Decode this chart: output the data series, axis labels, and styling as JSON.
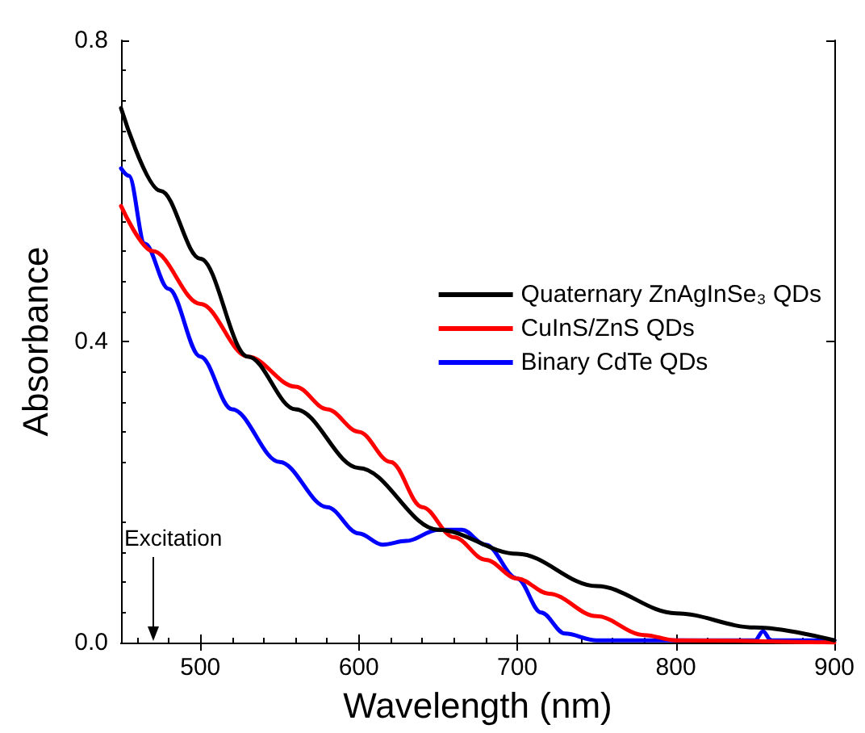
{
  "chart_data": {
    "type": "line",
    "xlabel": "Wavelength (nm)",
    "ylabel": "Absorbance",
    "xlim": [
      450,
      900
    ],
    "xticks": [
      500,
      600,
      700,
      800,
      900
    ],
    "ylim": [
      0,
      0.8
    ],
    "yticks": [
      {
        "value": 0,
        "label": "0.0"
      },
      {
        "value": 0.4,
        "label": "0.4"
      },
      {
        "value": 0.8,
        "label": "0.8"
      }
    ],
    "grid": false,
    "legend": "right",
    "marker": "none",
    "line_style": "solid",
    "annotations": [
      "Excitation"
    ],
    "series": [
      {
        "name": "Quaternary ZnAgInSe₃ QDs",
        "color": "#000000",
        "x": [
          450,
          475,
          500,
          530,
          560,
          600,
          650,
          700,
          750,
          800,
          850,
          900
        ],
        "values": [
          0.71,
          0.6,
          0.51,
          0.38,
          0.31,
          0.232,
          0.15,
          0.118,
          0.075,
          0.039,
          0.02,
          0.003
        ]
      },
      {
        "name": "CuInS/ZnS QDs",
        "color": "#ff0000",
        "x": [
          450,
          470,
          500,
          530,
          560,
          580,
          600,
          620,
          640,
          660,
          680,
          700,
          720,
          750,
          780,
          800,
          900
        ],
        "values": [
          0.58,
          0.52,
          0.45,
          0.38,
          0.34,
          0.31,
          0.28,
          0.24,
          0.18,
          0.14,
          0.11,
          0.085,
          0.065,
          0.035,
          0.01,
          0.003,
          0
        ]
      },
      {
        "name": "Binary CdTe QDs",
        "color": "#0000ff",
        "x": [
          450,
          455,
          465,
          480,
          500,
          520,
          550,
          580,
          600,
          615,
          630,
          650,
          665,
          680,
          700,
          715,
          730,
          750,
          850,
          855,
          860,
          900
        ],
        "values": [
          0.63,
          0.62,
          0.53,
          0.47,
          0.38,
          0.31,
          0.24,
          0.18,
          0.145,
          0.13,
          0.135,
          0.15,
          0.15,
          0.13,
          0.085,
          0.04,
          0.012,
          0.003,
          0.003,
          0.015,
          0.003,
          0.003
        ]
      }
    ]
  }
}
